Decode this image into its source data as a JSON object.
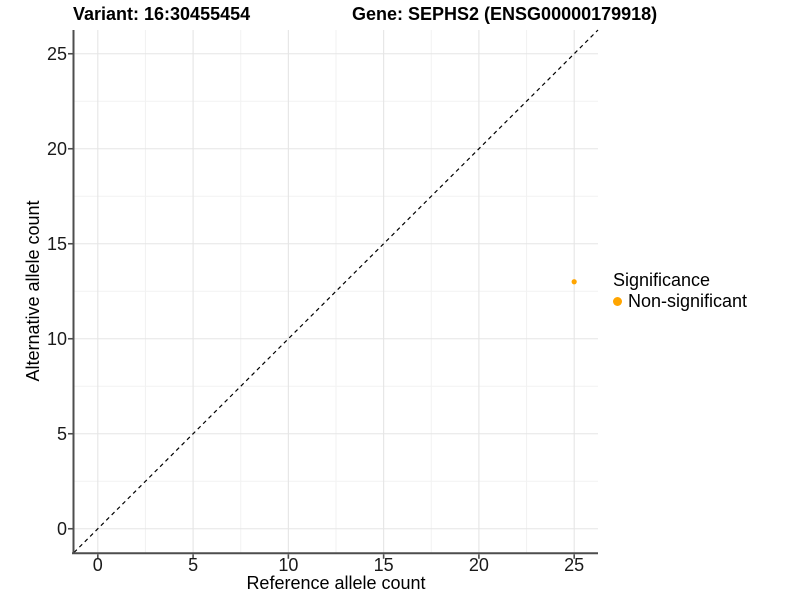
{
  "chart_data": {
    "type": "scatter",
    "title_left": "Variant: 16:30455454",
    "title_right": "Gene: SEPHS2 (ENSG00000179918)",
    "xlabel": "Reference allele count",
    "ylabel": "Alternative allele count",
    "xlim": [
      -1.25,
      26.25
    ],
    "ylim": [
      -1.25,
      26.25
    ],
    "xticks": [
      0,
      5,
      10,
      15,
      20,
      25
    ],
    "yticks": [
      0,
      5,
      10,
      15,
      20,
      25
    ],
    "grid": "major and minor, minor at midpoints",
    "reference_line": {
      "kind": "identity y=x",
      "style": "dashed",
      "color": "#000000"
    },
    "series": [
      {
        "name": "Non-significant",
        "color": "#FFA500",
        "points": [
          {
            "x": 25,
            "y": 13
          }
        ]
      }
    ],
    "legend": {
      "position": "right",
      "title": "Significance",
      "entries": [
        {
          "label": "Non-significant",
          "color": "#FFA500"
        }
      ]
    }
  },
  "colors": {
    "background": "#ffffff",
    "grid_major": "#e5e5e5",
    "grid_minor": "#f2f2f2",
    "axis_line": "#4d4d4d",
    "tick_mark": "#4d4d4d",
    "tick_label": "#1a1a1a",
    "title": "#000000",
    "point": "#FFA500"
  }
}
